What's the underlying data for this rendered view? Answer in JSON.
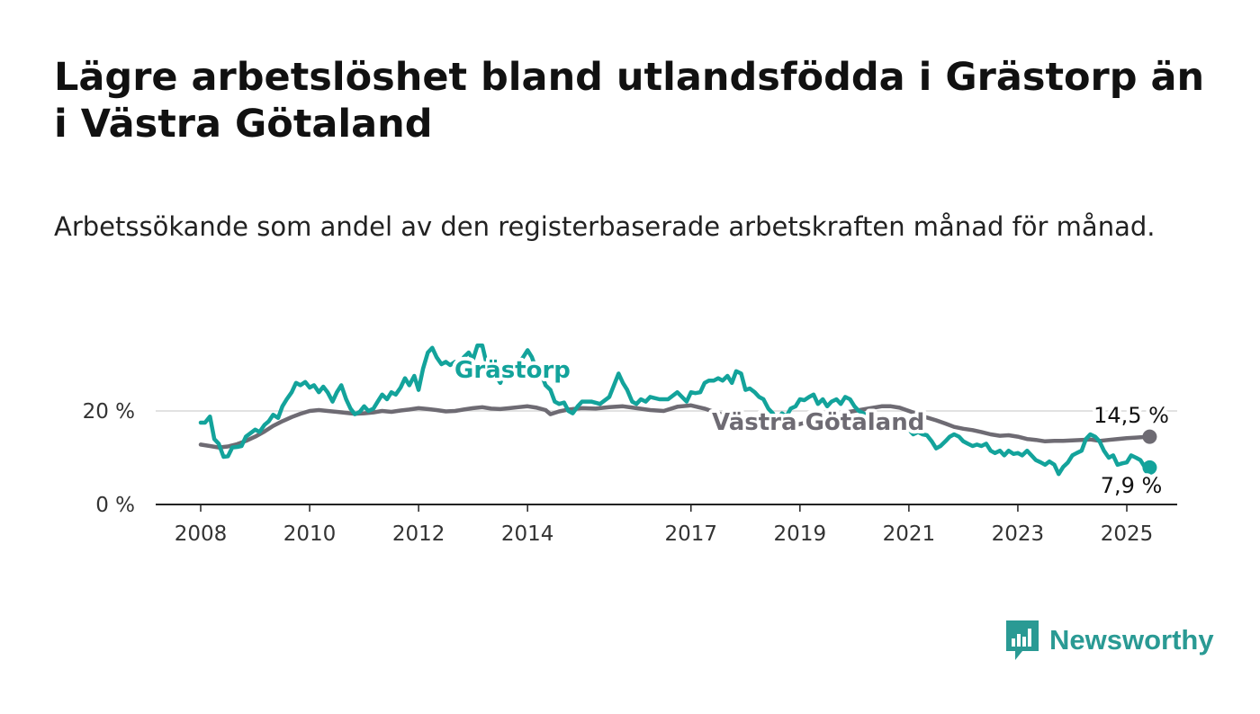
{
  "title": "Lägre arbetslöshet bland utlandsfödda i Grästorp än i Västra Götaland",
  "subtitle": "Arbetssökande som andel av den registerbaserade arbetskraften månad för månad.",
  "brand": {
    "name": "Newsworthy",
    "icon": "newsworthy-logo-icon"
  },
  "chart_data": {
    "type": "line",
    "y_ticks": [
      "0 %",
      "20 %"
    ],
    "x_ticks": [
      "2008",
      "2010",
      "2012",
      "2014",
      "2017",
      "2019",
      "2021",
      "2023",
      "2025"
    ],
    "ylim": [
      0,
      35
    ],
    "xlim": [
      2007.25,
      2026
    ],
    "grid": true,
    "series": [
      {
        "name": "Grästorp",
        "color": "#13a39b",
        "end_label": "7,9 %",
        "points": [
          [
            2008.0,
            17.5
          ],
          [
            2008.08,
            17.5
          ],
          [
            2008.17,
            18.8
          ],
          [
            2008.25,
            14.0
          ],
          [
            2008.33,
            13.0
          ],
          [
            2008.42,
            10.2
          ],
          [
            2008.5,
            10.3
          ],
          [
            2008.58,
            12.2
          ],
          [
            2008.67,
            12.3
          ],
          [
            2008.75,
            12.5
          ],
          [
            2008.83,
            14.5
          ],
          [
            2008.92,
            15.3
          ],
          [
            2009.0,
            16.0
          ],
          [
            2009.08,
            15.5
          ],
          [
            2009.17,
            17.0
          ],
          [
            2009.25,
            17.8
          ],
          [
            2009.33,
            19.2
          ],
          [
            2009.42,
            18.5
          ],
          [
            2009.5,
            21.0
          ],
          [
            2009.58,
            22.5
          ],
          [
            2009.67,
            24.0
          ],
          [
            2009.75,
            26.0
          ],
          [
            2009.83,
            25.5
          ],
          [
            2009.92,
            26.2
          ],
          [
            2010.0,
            25.0
          ],
          [
            2010.08,
            25.5
          ],
          [
            2010.17,
            24.0
          ],
          [
            2010.25,
            25.2
          ],
          [
            2010.33,
            24.0
          ],
          [
            2010.42,
            22.0
          ],
          [
            2010.5,
            24.0
          ],
          [
            2010.58,
            25.5
          ],
          [
            2010.67,
            22.5
          ],
          [
            2010.75,
            20.5
          ],
          [
            2010.83,
            19.3
          ],
          [
            2010.92,
            19.8
          ],
          [
            2011.0,
            21.0
          ],
          [
            2011.08,
            20.0
          ],
          [
            2011.17,
            20.5
          ],
          [
            2011.25,
            22.0
          ],
          [
            2011.33,
            23.5
          ],
          [
            2011.42,
            22.5
          ],
          [
            2011.5,
            24.0
          ],
          [
            2011.58,
            23.5
          ],
          [
            2011.67,
            25.0
          ],
          [
            2011.75,
            27.0
          ],
          [
            2011.83,
            25.5
          ],
          [
            2011.92,
            27.5
          ],
          [
            2012.0,
            24.5
          ],
          [
            2012.08,
            29.0
          ],
          [
            2012.17,
            32.5
          ],
          [
            2012.25,
            33.5
          ],
          [
            2012.33,
            31.5
          ],
          [
            2012.42,
            30.0
          ],
          [
            2012.5,
            30.5
          ],
          [
            2012.58,
            29.8
          ],
          [
            2012.67,
            30.5
          ],
          [
            2012.75,
            29.5
          ],
          [
            2012.83,
            31.5
          ],
          [
            2012.92,
            32.5
          ],
          [
            2013.0,
            31.0
          ],
          [
            2013.08,
            34.0
          ],
          [
            2013.17,
            34.0
          ],
          [
            2013.25,
            30.0
          ],
          [
            2013.33,
            27.0
          ],
          [
            2013.42,
            27.5
          ],
          [
            2013.5,
            26.0
          ],
          [
            2013.58,
            28.5
          ],
          [
            2013.67,
            29.5
          ],
          [
            2013.75,
            28.5
          ],
          [
            2013.83,
            30.0
          ],
          [
            2013.92,
            31.5
          ],
          [
            2014.0,
            33.0
          ],
          [
            2014.08,
            31.5
          ],
          [
            2014.17,
            28.5
          ],
          [
            2014.25,
            28.0
          ],
          [
            2014.33,
            25.5
          ],
          [
            2014.42,
            24.5
          ],
          [
            2014.5,
            22.0
          ],
          [
            2014.58,
            21.5
          ],
          [
            2014.67,
            21.8
          ],
          [
            2014.75,
            20.0
          ],
          [
            2014.83,
            19.5
          ],
          [
            2014.92,
            21.0
          ],
          [
            2015.0,
            22.0
          ],
          [
            2015.17,
            22.0
          ],
          [
            2015.33,
            21.5
          ],
          [
            2015.5,
            23.0
          ],
          [
            2015.67,
            28.0
          ],
          [
            2015.75,
            26.0
          ],
          [
            2015.83,
            24.5
          ],
          [
            2015.92,
            22.0
          ],
          [
            2016.0,
            21.5
          ],
          [
            2016.08,
            22.5
          ],
          [
            2016.17,
            22.0
          ],
          [
            2016.25,
            23.0
          ],
          [
            2016.42,
            22.5
          ],
          [
            2016.58,
            22.5
          ],
          [
            2016.75,
            24.0
          ],
          [
            2016.92,
            22.0
          ],
          [
            2017.0,
            24.0
          ],
          [
            2017.08,
            23.8
          ],
          [
            2017.17,
            24.0
          ],
          [
            2017.25,
            26.0
          ],
          [
            2017.33,
            26.5
          ],
          [
            2017.42,
            26.5
          ],
          [
            2017.5,
            27.0
          ],
          [
            2017.58,
            26.5
          ],
          [
            2017.67,
            27.5
          ],
          [
            2017.75,
            26.0
          ],
          [
            2017.83,
            28.5
          ],
          [
            2017.92,
            28.0
          ],
          [
            2018.0,
            24.5
          ],
          [
            2018.08,
            24.8
          ],
          [
            2018.17,
            24.0
          ],
          [
            2018.25,
            23.0
          ],
          [
            2018.33,
            22.5
          ],
          [
            2018.42,
            20.5
          ],
          [
            2018.5,
            19.5
          ],
          [
            2018.58,
            18.0
          ],
          [
            2018.67,
            19.5
          ],
          [
            2018.75,
            18.8
          ],
          [
            2018.83,
            20.5
          ],
          [
            2018.92,
            21.0
          ],
          [
            2019.0,
            22.5
          ],
          [
            2019.08,
            22.3
          ],
          [
            2019.17,
            23.0
          ],
          [
            2019.25,
            23.5
          ],
          [
            2019.33,
            21.5
          ],
          [
            2019.42,
            22.5
          ],
          [
            2019.5,
            21.0
          ],
          [
            2019.58,
            22.0
          ],
          [
            2019.67,
            22.5
          ],
          [
            2019.75,
            21.5
          ],
          [
            2019.83,
            23.0
          ],
          [
            2019.92,
            22.5
          ],
          [
            2020.0,
            21.0
          ],
          [
            2020.08,
            20.0
          ],
          [
            2020.17,
            19.5
          ],
          [
            2020.25,
            18.5
          ],
          [
            2020.33,
            18.0
          ],
          [
            2020.5,
            17.5
          ],
          [
            2020.67,
            17.0
          ],
          [
            2020.83,
            16.5
          ],
          [
            2021.0,
            16.0
          ],
          [
            2021.08,
            15.0
          ],
          [
            2021.17,
            15.5
          ],
          [
            2021.25,
            15.0
          ],
          [
            2021.33,
            14.8
          ],
          [
            2021.42,
            13.5
          ],
          [
            2021.5,
            12.0
          ],
          [
            2021.58,
            12.5
          ],
          [
            2021.67,
            13.5
          ],
          [
            2021.75,
            14.5
          ],
          [
            2021.83,
            15.0
          ],
          [
            2021.92,
            14.5
          ],
          [
            2022.0,
            13.5
          ],
          [
            2022.08,
            13.0
          ],
          [
            2022.17,
            12.5
          ],
          [
            2022.25,
            12.8
          ],
          [
            2022.33,
            12.5
          ],
          [
            2022.42,
            13.0
          ],
          [
            2022.5,
            11.5
          ],
          [
            2022.58,
            11.0
          ],
          [
            2022.67,
            11.5
          ],
          [
            2022.75,
            10.5
          ],
          [
            2022.83,
            11.5
          ],
          [
            2022.92,
            10.8
          ],
          [
            2023.0,
            11.0
          ],
          [
            2023.08,
            10.5
          ],
          [
            2023.17,
            11.5
          ],
          [
            2023.25,
            10.5
          ],
          [
            2023.33,
            9.5
          ],
          [
            2023.42,
            9.0
          ],
          [
            2023.5,
            8.5
          ],
          [
            2023.58,
            9.2
          ],
          [
            2023.67,
            8.5
          ],
          [
            2023.75,
            6.5
          ],
          [
            2023.83,
            8.0
          ],
          [
            2023.92,
            9.0
          ],
          [
            2024.0,
            10.5
          ],
          [
            2024.08,
            11.0
          ],
          [
            2024.17,
            11.5
          ],
          [
            2024.25,
            14.0
          ],
          [
            2024.33,
            15.0
          ],
          [
            2024.42,
            14.5
          ],
          [
            2024.5,
            13.5
          ],
          [
            2024.58,
            11.5
          ],
          [
            2024.67,
            10.0
          ],
          [
            2024.75,
            10.5
          ],
          [
            2024.83,
            8.5
          ],
          [
            2024.92,
            8.8
          ],
          [
            2025.0,
            9.0
          ],
          [
            2025.08,
            10.5
          ],
          [
            2025.17,
            10.0
          ],
          [
            2025.25,
            9.5
          ],
          [
            2025.33,
            8.0
          ],
          [
            2025.42,
            7.9
          ]
        ]
      },
      {
        "name": "Västra Götaland",
        "color": "#6e6b73",
        "end_label": "14,5 %",
        "points": [
          [
            2008.0,
            12.8
          ],
          [
            2008.17,
            12.5
          ],
          [
            2008.33,
            12.2
          ],
          [
            2008.5,
            12.4
          ],
          [
            2008.67,
            12.9
          ],
          [
            2008.83,
            13.6
          ],
          [
            2009.0,
            14.5
          ],
          [
            2009.17,
            15.6
          ],
          [
            2009.33,
            16.8
          ],
          [
            2009.5,
            17.8
          ],
          [
            2009.67,
            18.7
          ],
          [
            2009.83,
            19.4
          ],
          [
            2010.0,
            20.0
          ],
          [
            2010.17,
            20.2
          ],
          [
            2010.33,
            20.0
          ],
          [
            2010.5,
            19.8
          ],
          [
            2010.67,
            19.6
          ],
          [
            2010.83,
            19.4
          ],
          [
            2011.0,
            19.5
          ],
          [
            2011.17,
            19.7
          ],
          [
            2011.33,
            20.0
          ],
          [
            2011.5,
            19.8
          ],
          [
            2011.67,
            20.1
          ],
          [
            2011.83,
            20.3
          ],
          [
            2012.0,
            20.6
          ],
          [
            2012.17,
            20.4
          ],
          [
            2012.33,
            20.2
          ],
          [
            2012.5,
            19.9
          ],
          [
            2012.67,
            20.0
          ],
          [
            2012.83,
            20.3
          ],
          [
            2013.0,
            20.6
          ],
          [
            2013.17,
            20.8
          ],
          [
            2013.33,
            20.5
          ],
          [
            2013.5,
            20.4
          ],
          [
            2013.67,
            20.6
          ],
          [
            2013.83,
            20.8
          ],
          [
            2014.0,
            21.0
          ],
          [
            2014.17,
            20.7
          ],
          [
            2014.33,
            20.2
          ],
          [
            2014.42,
            19.3
          ],
          [
            2014.58,
            19.9
          ],
          [
            2014.75,
            20.3
          ],
          [
            2015.0,
            20.6
          ],
          [
            2015.25,
            20.5
          ],
          [
            2015.5,
            20.8
          ],
          [
            2015.75,
            21.0
          ],
          [
            2016.0,
            20.6
          ],
          [
            2016.25,
            20.2
          ],
          [
            2016.5,
            20.0
          ],
          [
            2016.75,
            20.9
          ],
          [
            2017.0,
            21.2
          ],
          [
            2017.25,
            20.5
          ],
          [
            2017.5,
            19.5
          ],
          [
            2017.75,
            18.5
          ],
          [
            2018.0,
            17.5
          ],
          [
            2018.25,
            17.0
          ],
          [
            2018.5,
            16.5
          ],
          [
            2018.75,
            16.5
          ],
          [
            2019.0,
            17.2
          ],
          [
            2019.25,
            18.0
          ],
          [
            2019.5,
            18.8
          ],
          [
            2019.75,
            19.5
          ],
          [
            2020.0,
            20.0
          ],
          [
            2020.25,
            20.5
          ],
          [
            2020.5,
            21.0
          ],
          [
            2020.67,
            21.0
          ],
          [
            2020.83,
            20.7
          ],
          [
            2021.0,
            20.0
          ],
          [
            2021.17,
            19.3
          ],
          [
            2021.33,
            18.6
          ],
          [
            2021.5,
            18.0
          ],
          [
            2021.67,
            17.3
          ],
          [
            2021.83,
            16.6
          ],
          [
            2022.0,
            16.2
          ],
          [
            2022.17,
            15.9
          ],
          [
            2022.33,
            15.5
          ],
          [
            2022.5,
            15.0
          ],
          [
            2022.67,
            14.7
          ],
          [
            2022.83,
            14.8
          ],
          [
            2023.0,
            14.5
          ],
          [
            2023.17,
            14.0
          ],
          [
            2023.33,
            13.8
          ],
          [
            2023.5,
            13.5
          ],
          [
            2023.67,
            13.6
          ],
          [
            2023.83,
            13.6
          ],
          [
            2024.0,
            13.7
          ],
          [
            2024.17,
            13.8
          ],
          [
            2024.33,
            13.9
          ],
          [
            2024.5,
            13.6
          ],
          [
            2024.67,
            13.8
          ],
          [
            2024.83,
            14.0
          ],
          [
            2025.0,
            14.2
          ],
          [
            2025.17,
            14.3
          ],
          [
            2025.42,
            14.5
          ]
        ]
      }
    ]
  }
}
